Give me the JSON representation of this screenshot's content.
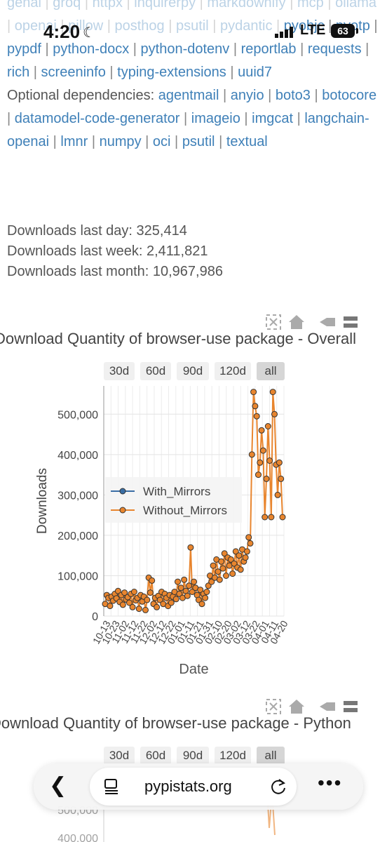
{
  "status": {
    "time": "4:20",
    "network": "LTE",
    "battery": "63"
  },
  "dependencies": {
    "top_row": [
      "genai",
      "groq",
      "httpx",
      "inquirerpy",
      "markdownify",
      "mcp"
    ],
    "row2": [
      "ollama",
      "openai",
      "pillow",
      "posthog",
      "psutil",
      "pydantic"
    ],
    "required_rest": [
      "pyobjc",
      "pyotp",
      "pypdf",
      "python-docx",
      "python-dotenv",
      "reportlab",
      "requests",
      "rich",
      "screeninfo",
      "typing-extensions",
      "uuid7"
    ],
    "optional_label": "Optional dependencies:",
    "optional": [
      "agentmail",
      "anyio",
      "boto3",
      "botocore",
      "datamodel-code-generator",
      "imageio",
      "imgcat",
      "langchain-openai",
      "lmnr",
      "numpy",
      "oci",
      "psutil",
      "textual"
    ]
  },
  "stats": {
    "last_day": "Downloads last day: 325,414",
    "last_week": "Downloads last week: 2,411,821",
    "last_month": "Downloads last month: 10,967,986"
  },
  "chart1_title": "Download Quantity of browser-use package - Overall",
  "chart2_title": "Download Quantity of browser-use package - Python",
  "range_buttons": [
    "30d",
    "60d",
    "90d",
    "120d",
    "all"
  ],
  "browser": {
    "url": "pypistats.org"
  },
  "colors": {
    "with_mirrors": "#3a6ea5",
    "without_mirrors": "#e8852e",
    "link": "#3f80b8"
  },
  "chart_data": {
    "type": "line",
    "title": "Download Quantity of browser-use package - Overall",
    "xlabel": "Date",
    "ylabel": "Downloads",
    "ylim": [
      0,
      570000
    ],
    "yticks": [
      "0",
      "100,000",
      "200,000",
      "300,000",
      "400,000",
      "500,000"
    ],
    "xticks": [
      "10-13",
      "10-23",
      "11-02",
      "11-12",
      "11-22",
      "12-02",
      "12-12",
      "12-22",
      "01-01",
      "01-11",
      "01-21",
      "01-31",
      "02-10",
      "02-20",
      "03-02",
      "03-12",
      "03-22",
      "04-01",
      "04-11",
      "04-20"
    ],
    "grid": true,
    "legend_position": "center-left",
    "series": [
      {
        "name": "With_Mirrors",
        "values": []
      },
      {
        "name": "Without_Mirrors",
        "values": [
          30000,
          52000,
          45000,
          25000,
          48000,
          38000,
          55000,
          44000,
          62000,
          35000,
          52000,
          28000,
          58000,
          41000,
          47000,
          33000,
          55000,
          22000,
          60000,
          39000,
          45000,
          18000,
          52000,
          36000,
          48000,
          15000,
          40000,
          95000,
          58000,
          88000,
          30000,
          45000,
          22000,
          50000,
          40000,
          60000,
          30000,
          55000,
          45000,
          25000,
          52000,
          33000,
          48000,
          60000,
          42000,
          85000,
          55000,
          70000,
          45000,
          90000,
          62000,
          50000,
          75000,
          170000,
          60000,
          85000,
          70000,
          52000,
          40000,
          65000,
          30000,
          55000,
          45000,
          60000,
          75000,
          100000,
          85000,
          125000,
          95000,
          140000,
          110000,
          90000,
          135000,
          118000,
          155000,
          100000,
          145000,
          125000,
          140000,
          105000,
          130000,
          160000,
          120000,
          150000,
          115000,
          165000,
          135000,
          145000,
          160000,
          195000,
          180000,
          400000,
          555000,
          520000,
          495000,
          350000,
          380000,
          460000,
          410000,
          245000,
          340000,
          470000,
          385000,
          245000,
          555000,
          500000,
          375000,
          300000,
          380000,
          340000,
          245000
        ]
      }
    ]
  }
}
